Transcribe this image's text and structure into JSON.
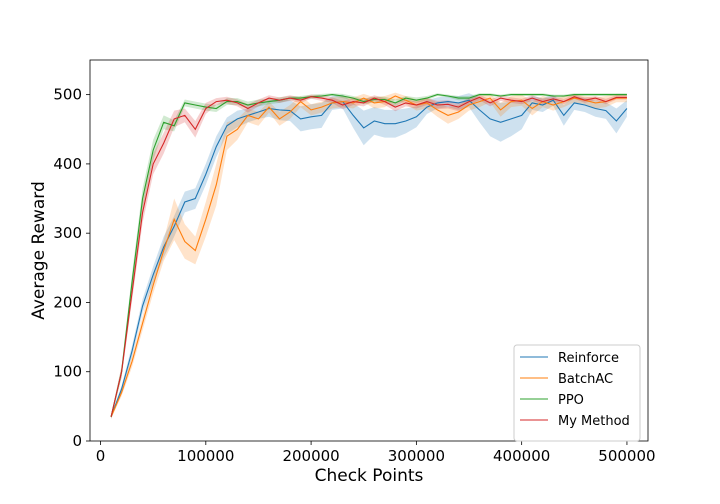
{
  "chart_data": {
    "type": "line",
    "xlabel": "Check Points",
    "ylabel": "Average Reward",
    "xlim": [
      -10000,
      520000
    ],
    "ylim": [
      0,
      550
    ],
    "xticks": [
      0,
      100000,
      200000,
      300000,
      400000,
      500000
    ],
    "xtick_labels": [
      "0",
      "100000",
      "200000",
      "300000",
      "400000",
      "500000"
    ],
    "yticks": [
      0,
      100,
      200,
      300,
      400,
      500
    ],
    "ytick_labels": [
      "0",
      "100",
      "200",
      "300",
      "400",
      "500"
    ],
    "grid": false,
    "legend_position": "lower-right",
    "x": [
      10000,
      20000,
      30000,
      40000,
      50000,
      60000,
      70000,
      80000,
      90000,
      100000,
      110000,
      120000,
      130000,
      140000,
      150000,
      160000,
      170000,
      180000,
      190000,
      200000,
      210000,
      220000,
      230000,
      240000,
      250000,
      260000,
      270000,
      280000,
      290000,
      300000,
      310000,
      320000,
      330000,
      340000,
      350000,
      360000,
      370000,
      380000,
      390000,
      400000,
      410000,
      420000,
      430000,
      440000,
      450000,
      460000,
      470000,
      480000,
      490000,
      500000
    ],
    "series": [
      {
        "name": "Reinforce",
        "color": "#1f77b4",
        "values": [
          35,
          75,
          130,
          195,
          240,
          280,
          310,
          345,
          350,
          385,
          425,
          455,
          465,
          470,
          475,
          480,
          478,
          477,
          465,
          468,
          470,
          488,
          490,
          470,
          452,
          462,
          458,
          458,
          462,
          468,
          482,
          488,
          490,
          488,
          492,
          478,
          465,
          460,
          465,
          470,
          488,
          485,
          492,
          470,
          488,
          485,
          480,
          477,
          462,
          480
        ],
        "band": [
          3,
          5,
          8,
          10,
          12,
          15,
          15,
          15,
          15,
          15,
          15,
          12,
          12,
          10,
          10,
          12,
          15,
          15,
          18,
          18,
          18,
          10,
          10,
          18,
          25,
          20,
          20,
          20,
          18,
          15,
          10,
          8,
          8,
          10,
          10,
          18,
          25,
          28,
          25,
          20,
          10,
          10,
          8,
          15,
          10,
          10,
          12,
          12,
          18,
          12
        ]
      },
      {
        "name": "BatchAC",
        "color": "#ff7f0e",
        "values": [
          35,
          70,
          115,
          170,
          225,
          275,
          320,
          288,
          275,
          320,
          370,
          440,
          450,
          470,
          465,
          482,
          465,
          475,
          490,
          478,
          482,
          488,
          490,
          488,
          495,
          488,
          490,
          498,
          492,
          485,
          488,
          478,
          470,
          475,
          485,
          490,
          495,
          478,
          490,
          492,
          480,
          490,
          485,
          490,
          495,
          492,
          488,
          490,
          495,
          495
        ],
        "band": [
          3,
          5,
          8,
          10,
          12,
          15,
          30,
          25,
          20,
          25,
          30,
          20,
          15,
          10,
          10,
          8,
          10,
          10,
          8,
          8,
          8,
          8,
          8,
          8,
          6,
          8,
          8,
          5,
          6,
          8,
          8,
          10,
          12,
          10,
          8,
          8,
          6,
          10,
          8,
          8,
          10,
          8,
          8,
          8,
          6,
          6,
          8,
          8,
          6,
          6
        ]
      },
      {
        "name": "PPO",
        "color": "#2ca02c",
        "values": [
          35,
          100,
          230,
          350,
          420,
          460,
          455,
          488,
          485,
          482,
          480,
          490,
          490,
          485,
          488,
          490,
          492,
          495,
          495,
          497,
          498,
          500,
          498,
          495,
          490,
          493,
          493,
          488,
          495,
          492,
          495,
          500,
          498,
          495,
          495,
          500,
          500,
          498,
          500,
          500,
          500,
          500,
          498,
          498,
          500,
          500,
          500,
          500,
          500,
          500
        ],
        "band": [
          3,
          8,
          12,
          15,
          15,
          10,
          8,
          5,
          5,
          5,
          5,
          5,
          5,
          5,
          5,
          4,
          4,
          3,
          3,
          3,
          3,
          2,
          3,
          3,
          4,
          4,
          4,
          5,
          3,
          4,
          3,
          2,
          2,
          3,
          3,
          2,
          2,
          2,
          2,
          2,
          2,
          2,
          2,
          2,
          2,
          2,
          2,
          2,
          2,
          2
        ]
      },
      {
        "name": "My Method",
        "color": "#d62728",
        "values": [
          35,
          100,
          215,
          330,
          400,
          430,
          465,
          470,
          450,
          480,
          490,
          492,
          488,
          480,
          488,
          495,
          492,
          495,
          492,
          497,
          495,
          492,
          485,
          490,
          488,
          495,
          490,
          482,
          488,
          485,
          490,
          485,
          486,
          482,
          490,
          496,
          488,
          495,
          492,
          490,
          495,
          490,
          494,
          490,
          497,
          492,
          495,
          490,
          496,
          496
        ],
        "band": [
          3,
          8,
          12,
          15,
          15,
          15,
          12,
          10,
          12,
          8,
          5,
          5,
          5,
          6,
          5,
          4,
          4,
          4,
          4,
          3,
          4,
          4,
          6,
          5,
          5,
          4,
          5,
          6,
          5,
          5,
          5,
          6,
          6,
          6,
          5,
          4,
          5,
          4,
          4,
          4,
          4,
          4,
          4,
          4,
          3,
          4,
          3,
          4,
          3,
          3
        ]
      }
    ]
  }
}
